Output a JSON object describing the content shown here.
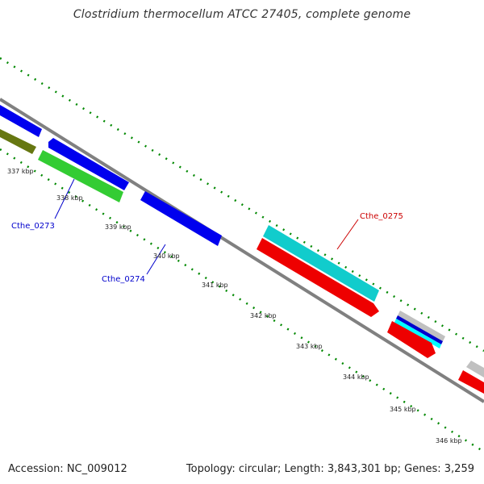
{
  "title": "Clostridium thermocellum ATCC 27405, complete genome",
  "footer": {
    "accession": "Accession: NC_009012",
    "stats": "Topology: circular; Length: 3,843,301 bp; Genes: 3,259"
  },
  "ticks": [
    "337 kbp",
    "338 kbp",
    "339 kbp",
    "340 kbp",
    "341 kbp",
    "342 kbp",
    "343 kbp",
    "344 kbp",
    "345 kbp",
    "346 kbp"
  ],
  "gene_labels": [
    {
      "text": "Cthe_0273",
      "color": "#0000cc"
    },
    {
      "text": "Cthe_0274",
      "color": "#0000cc"
    },
    {
      "text": "Cthe_0275",
      "color": "#cc0000"
    }
  ],
  "colors": {
    "backbone": "#808080",
    "blue": "#0000ee",
    "green": "#33cc33",
    "olive": "#667711",
    "cyan": "#11cccc",
    "red": "#ee0000",
    "grey": "#c0c0c0",
    "tick_green": "#008800"
  }
}
